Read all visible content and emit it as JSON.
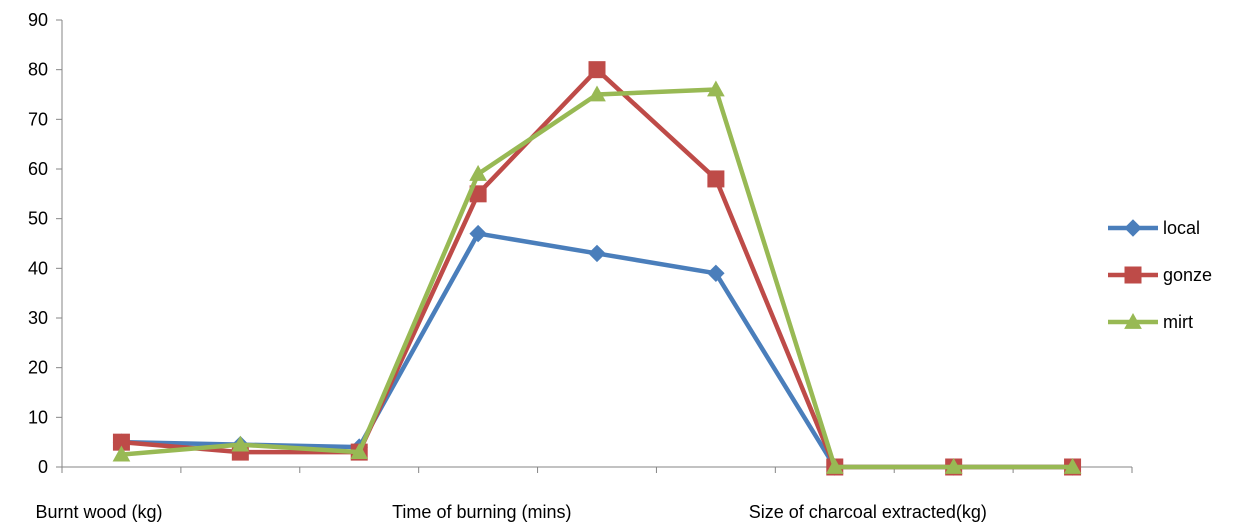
{
  "chart_data": {
    "type": "line",
    "title": "",
    "xlabel": "",
    "ylabel": "",
    "ylim": [
      0,
      90
    ],
    "yticks": [
      0,
      10,
      20,
      30,
      40,
      50,
      60,
      70,
      80,
      90
    ],
    "point_count": 9,
    "category_labels": [
      "Burnt wood (kg)",
      "Time of burning (mins)",
      "Size of charcoal extracted(kg)"
    ],
    "grid": false,
    "legend_position": "right",
    "series": [
      {
        "name": "local",
        "color": "#4A7EBB",
        "marker": "diamond",
        "values": [
          5,
          4.5,
          4,
          47,
          43,
          39,
          0,
          0,
          0
        ]
      },
      {
        "name": "gonze",
        "color": "#BE4B48",
        "marker": "square",
        "values": [
          5,
          3,
          3,
          55,
          80,
          58,
          0,
          0,
          0
        ]
      },
      {
        "name": "mirt",
        "color": "#98B954",
        "marker": "triangle",
        "values": [
          2.5,
          4.5,
          3,
          59,
          75,
          76,
          0,
          0,
          0
        ]
      }
    ]
  }
}
